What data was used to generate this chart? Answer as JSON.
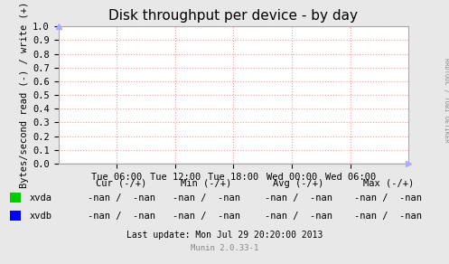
{
  "title": "Disk throughput per device - by day",
  "ylabel": "Bytes/second read (-) / write (+)",
  "bg_color": "#e8e8e8",
  "plot_bg_color": "#ffffff",
  "grid_color": "#ff9999",
  "ylim": [
    0.0,
    1.0
  ],
  "yticks": [
    0.0,
    0.1,
    0.2,
    0.3,
    0.4,
    0.5,
    0.6,
    0.7,
    0.8,
    0.9,
    1.0
  ],
  "xtick_labels": [
    "Tue 06:00",
    "Tue 12:00",
    "Tue 18:00",
    "Wed 00:00",
    "Wed 06:00"
  ],
  "xtick_positions": [
    0.1667,
    0.3333,
    0.5,
    0.6667,
    0.8333
  ],
  "legend_entries": [
    {
      "label": "xvda",
      "color": "#00cc00"
    },
    {
      "label": "xvdb",
      "color": "#0000ff"
    }
  ],
  "cur_label": "Cur (-/+)",
  "min_label": "Min (-/+)",
  "avg_label": "Avg (-/+)",
  "max_label": "Max (-/+)",
  "nan_text": "-nan /  -nan",
  "last_update": "Last update: Mon Jul 29 20:20:00 2013",
  "munin_version": "Munin 2.0.33-1",
  "rrdtool_label": "RRDTOOL / TOBI OETIKER",
  "title_fontsize": 11,
  "axis_label_fontsize": 7.5,
  "tick_fontsize": 7.5,
  "legend_fontsize": 7.5,
  "footer_fontsize": 7,
  "arrow_color": "#aaaaff"
}
